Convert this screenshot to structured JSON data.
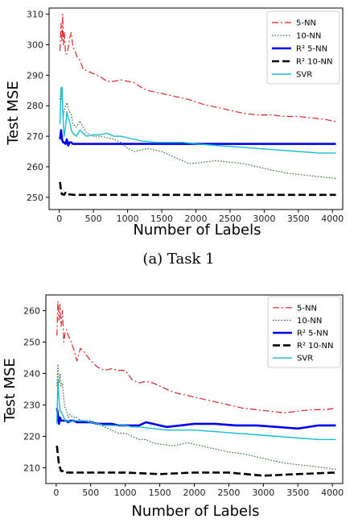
{
  "chart_data": [
    {
      "type": "line",
      "caption": "(a) Task 1",
      "xlabel": "Number of Labels",
      "ylabel": "Test MSE",
      "xlim": [
        -150,
        4150
      ],
      "ylim": [
        246,
        312
      ],
      "xticks": [
        0,
        500,
        1000,
        1500,
        2000,
        2500,
        3000,
        3500,
        4000
      ],
      "yticks": [
        250,
        260,
        270,
        280,
        290,
        300,
        310
      ],
      "grid": false,
      "legend_position": "top-right",
      "series": [
        {
          "name": "5-NN",
          "color": "#d62728",
          "dash": "8,3,2,3",
          "width": 1.2,
          "x": [
            10,
            25,
            40,
            50,
            60,
            75,
            90,
            110,
            130,
            150,
            175,
            200,
            230,
            260,
            300,
            350,
            400,
            500,
            600,
            700,
            800,
            900,
            1000,
            1100,
            1200,
            1300,
            1500,
            1700,
            1900,
            2100,
            2300,
            2500,
            2700,
            2900,
            3100,
            3300,
            3500,
            3700,
            3900,
            4050
          ],
          "y": [
            298,
            307,
            301,
            310,
            300,
            304,
            297,
            297,
            299,
            302,
            304,
            299,
            298,
            296,
            295,
            292,
            291.5,
            290.5,
            289.5,
            288,
            288,
            288.5,
            288,
            287.5,
            286,
            285,
            284,
            283,
            282,
            280.5,
            279.5,
            278.5,
            277.5,
            277,
            277,
            276.5,
            276.5,
            276,
            275.5,
            274.8
          ]
        },
        {
          "name": "10-NN",
          "color": "#2e6b2e",
          "dash": "1.5,2",
          "width": 1.2,
          "x": [
            10,
            25,
            40,
            55,
            70,
            90,
            110,
            130,
            150,
            175,
            200,
            250,
            300,
            350,
            400,
            500,
            600,
            700,
            800,
            900,
            1000,
            1100,
            1200,
            1300,
            1400,
            1500,
            1700,
            1900,
            2100,
            2300,
            2500,
            2700,
            2900,
            3100,
            3300,
            3500,
            3700,
            3900,
            4050
          ],
          "y": [
            282,
            285,
            282,
            276,
            278,
            280,
            281,
            279,
            278,
            277,
            274,
            273,
            275,
            273,
            271,
            270,
            270,
            269.5,
            269,
            268,
            266,
            265,
            265.5,
            266,
            265.5,
            265,
            263,
            261,
            261.5,
            262,
            261.5,
            261,
            260,
            259,
            258,
            257.5,
            257,
            256.5,
            256.2
          ]
        },
        {
          "name": "R² 5-NN",
          "color": "#0000ee",
          "dash": "",
          "width": 2.6,
          "x": [
            10,
            25,
            40,
            55,
            70,
            90,
            110,
            130,
            150,
            175,
            200,
            250,
            300,
            400,
            500,
            600,
            700,
            800,
            900,
            1000,
            1200,
            1500,
            2000,
            2500,
            3000,
            3500,
            4050
          ],
          "y": [
            269,
            272,
            269,
            268,
            268,
            267.5,
            269,
            267,
            268,
            268,
            267.5,
            267.5,
            267.5,
            267.5,
            267.5,
            267.5,
            267.5,
            267.5,
            267.5,
            267.5,
            267.5,
            267.5,
            267.5,
            267.5,
            267.5,
            267.5,
            267.5
          ]
        },
        {
          "name": "R² 10-NN",
          "color": "#000000",
          "dash": "9,4",
          "width": 2.6,
          "x": [
            10,
            25,
            40,
            55,
            70,
            90,
            110,
            130,
            150,
            200,
            300,
            500,
            1000,
            1500,
            2000,
            2500,
            3000,
            3500,
            4050
          ],
          "y": [
            255,
            252,
            251,
            251,
            250.8,
            251.5,
            251,
            250.8,
            251,
            250.8,
            250.8,
            250.8,
            250.8,
            250.8,
            250.8,
            250.8,
            250.8,
            250.8,
            250.8
          ]
        },
        {
          "name": "SVR",
          "color": "#17becf",
          "dash": "",
          "width": 1.4,
          "x": [
            10,
            25,
            40,
            55,
            70,
            90,
            110,
            130,
            150,
            175,
            200,
            250,
            300,
            350,
            400,
            500,
            600,
            700,
            800,
            900,
            1000,
            1200,
            1400,
            1600,
            1800,
            2000,
            2300,
            2600,
            2900,
            3200,
            3500,
            3800,
            4050
          ],
          "y": [
            274,
            286,
            286,
            276,
            270,
            273,
            278,
            276,
            275,
            272,
            271,
            270,
            272,
            271,
            270,
            270.5,
            270.5,
            271,
            270,
            270,
            269.5,
            268.5,
            268,
            268,
            268,
            267.5,
            267,
            266.5,
            266,
            265.5,
            265,
            264.5,
            264.5
          ]
        }
      ]
    },
    {
      "type": "line",
      "caption": "",
      "xlabel": "Number of Labels",
      "ylabel": "Test MSE",
      "xlim": [
        -150,
        4150
      ],
      "ylim": [
        205,
        265
      ],
      "xticks": [
        0,
        500,
        1000,
        1500,
        2000,
        2500,
        3000,
        3500,
        4000
      ],
      "yticks": [
        210,
        220,
        230,
        240,
        250,
        260
      ],
      "grid": false,
      "legend_position": "top-right",
      "series": [
        {
          "name": "5-NN",
          "color": "#d62728",
          "dash": "8,3,2,3",
          "width": 1.2,
          "x": [
            10,
            25,
            40,
            55,
            70,
            90,
            110,
            130,
            150,
            175,
            200,
            250,
            300,
            350,
            400,
            500,
            600,
            700,
            800,
            900,
            1000,
            1100,
            1200,
            1300,
            1400,
            1500,
            1700,
            1900,
            2100,
            2300,
            2500,
            2700,
            2900,
            3100,
            3300,
            3500,
            3700,
            3900,
            4050
          ],
          "y": [
            252,
            263,
            257,
            262,
            255,
            260,
            250,
            253,
            254,
            252,
            251,
            248,
            244,
            248,
            247,
            244,
            242,
            241,
            241.5,
            241,
            241,
            238,
            237,
            237.5,
            237,
            236,
            234,
            233,
            232,
            231,
            230,
            229,
            228.5,
            228,
            227.5,
            228,
            228.5,
            228.5,
            229
          ]
        },
        {
          "name": "10-NN",
          "color": "#2e6b2e",
          "dash": "1.5,2",
          "width": 1.2,
          "x": [
            10,
            25,
            40,
            55,
            70,
            90,
            110,
            130,
            150,
            175,
            200,
            250,
            300,
            350,
            400,
            500,
            600,
            700,
            800,
            900,
            1000,
            1100,
            1200,
            1300,
            1400,
            1500,
            1700,
            1900,
            2100,
            2300,
            2500,
            2700,
            2900,
            3100,
            3300,
            3500,
            3700,
            3900,
            4050
          ],
          "y": [
            236,
            243,
            237,
            240,
            236,
            237,
            232,
            229,
            228,
            226,
            227,
            226,
            226,
            225,
            225,
            225,
            224,
            223,
            222,
            221,
            221,
            220,
            219,
            219,
            218,
            217.5,
            217,
            218,
            217,
            216,
            215,
            214.5,
            213.5,
            212.5,
            211.5,
            211,
            210.5,
            210,
            209.5
          ]
        },
        {
          "name": "R² 5-NN",
          "color": "#0000ee",
          "dash": "",
          "width": 2.6,
          "x": [
            10,
            25,
            40,
            55,
            70,
            90,
            110,
            130,
            150,
            175,
            200,
            250,
            300,
            400,
            500,
            600,
            700,
            800,
            900,
            1000,
            1100,
            1200,
            1300,
            1400,
            1500,
            1600,
            1800,
            2000,
            2300,
            2600,
            2900,
            3200,
            3500,
            3800,
            4050
          ],
          "y": [
            229,
            227,
            224,
            226,
            225,
            225,
            225,
            225,
            225,
            224.5,
            225,
            225,
            224.5,
            224.5,
            224.5,
            224,
            224,
            224,
            223.5,
            223.5,
            223.5,
            223.5,
            224.5,
            224,
            223.5,
            223,
            223.5,
            224,
            224,
            223.5,
            223.5,
            223,
            222.5,
            223.5,
            223.5
          ]
        },
        {
          "name": "R² 10-NN",
          "color": "#000000",
          "dash": "9,4",
          "width": 2.6,
          "x": [
            10,
            25,
            40,
            55,
            70,
            90,
            110,
            130,
            150,
            200,
            300,
            500,
            1000,
            1500,
            2000,
            2500,
            3000,
            3500,
            4050
          ],
          "y": [
            217,
            214,
            211,
            210,
            209,
            209,
            208.5,
            208.5,
            208.5,
            208.5,
            208.5,
            208.5,
            208.5,
            208,
            208.5,
            208.5,
            207.5,
            208,
            208.5
          ]
        },
        {
          "name": "SVR",
          "color": "#17becf",
          "dash": "",
          "width": 1.4,
          "x": [
            10,
            25,
            40,
            55,
            70,
            90,
            110,
            130,
            150,
            175,
            200,
            250,
            300,
            350,
            400,
            500,
            600,
            700,
            800,
            900,
            1000,
            1100,
            1200,
            1400,
            1600,
            1800,
            2000,
            2300,
            2600,
            2900,
            3200,
            3500,
            3800,
            4050
          ],
          "y": [
            224,
            238,
            232,
            228,
            228,
            227,
            226,
            225,
            225,
            225,
            224.5,
            225,
            225,
            225,
            225,
            224.5,
            224,
            223.5,
            223.5,
            223.5,
            223.5,
            223,
            223,
            222.5,
            222,
            222,
            222,
            221.5,
            221,
            220.5,
            220,
            219.5,
            219,
            219
          ]
        }
      ]
    }
  ]
}
